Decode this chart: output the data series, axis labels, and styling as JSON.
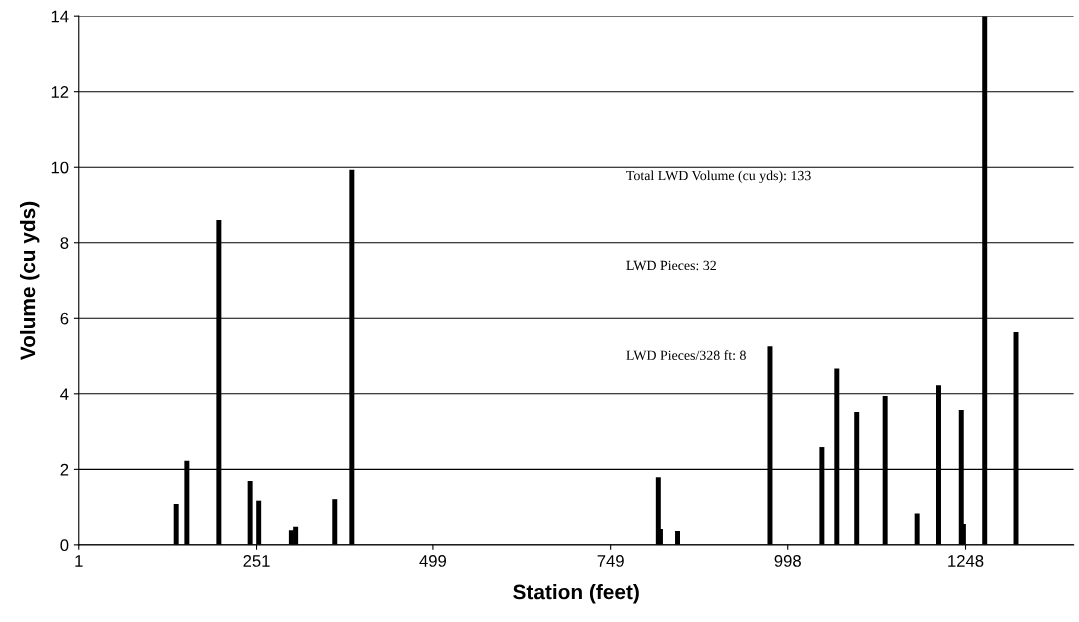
{
  "chart_data": {
    "type": "bar",
    "xlabel": "Station (feet)",
    "ylabel": "Volume (cu yds)",
    "x": [
      138,
      153,
      198,
      242,
      254,
      300,
      306,
      361,
      385,
      816,
      819,
      843,
      973,
      1046,
      1067,
      1095,
      1135,
      1180,
      1210,
      1242,
      1245,
      1275,
      1319
    ],
    "values": [
      1.08,
      2.23,
      8.6,
      1.69,
      1.17,
      0.39,
      0.48,
      1.21,
      9.93,
      1.79,
      0.42,
      0.37,
      5.26,
      2.59,
      4.67,
      3.52,
      3.94,
      0.83,
      4.23,
      3.57,
      0.55,
      14,
      5.64
    ],
    "color": "#000000",
    "xlim": [
      1,
      1400
    ],
    "xticks": [
      1,
      251,
      499,
      749,
      998,
      1248
    ],
    "ylim": [
      0,
      14
    ],
    "yticks": [
      0,
      2,
      4,
      6,
      8,
      10,
      12,
      14
    ],
    "grid": "y",
    "annotations": [
      "Total LWD Volume (cu yds): 133",
      "LWD Pieces: 32",
      "LWD Pieces/328 ft: 8"
    ]
  }
}
